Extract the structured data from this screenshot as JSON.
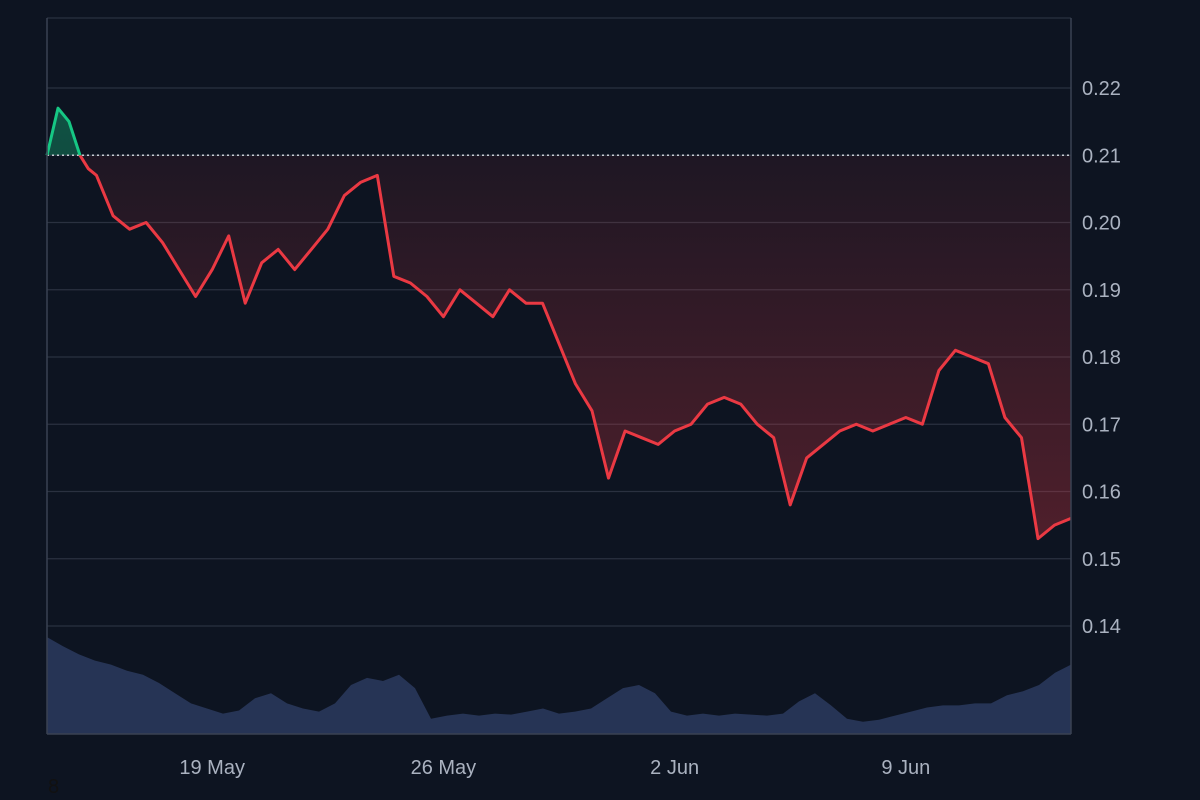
{
  "chart_data": {
    "type": "area",
    "title": "",
    "xlabel": "",
    "ylabel": "",
    "ylim": [
      0.13,
      0.23
    ],
    "yticks": [
      "0.22",
      "0.21",
      "0.20",
      "0.19",
      "0.18",
      "0.17",
      "0.16",
      "0.15",
      "0.14"
    ],
    "xticks": [
      "19 May",
      "26 May",
      "2 Jun",
      "9 Jun"
    ],
    "x_range": [
      "2025-05-14",
      "2025-06-14"
    ],
    "baseline": 0.21,
    "grid": true,
    "colors": {
      "up": "#16c784",
      "down": "#ea3943",
      "volume": "#2b3a5e",
      "grid": "#2a3140",
      "background": "#0d1421"
    },
    "series": [
      {
        "x": [
          "2025-05-14",
          "2025-05-14T08",
          "2025-05-14T16",
          "2025-05-15",
          "2025-05-15T06",
          "2025-05-15T12",
          "2025-05-16",
          "2025-05-16T12",
          "2025-05-17",
          "2025-05-17T12",
          "2025-05-18",
          "2025-05-18T12",
          "2025-05-19",
          "2025-05-19T12",
          "2025-05-20",
          "2025-05-20T12",
          "2025-05-21",
          "2025-05-21T12",
          "2025-05-22",
          "2025-05-22T12",
          "2025-05-23",
          "2025-05-23T12",
          "2025-05-24",
          "2025-05-24T12",
          "2025-05-25",
          "2025-05-25T12",
          "2025-05-26",
          "2025-05-26T12",
          "2025-05-27",
          "2025-05-27T12",
          "2025-05-28",
          "2025-05-28T12",
          "2025-05-29",
          "2025-05-29T12",
          "2025-05-30",
          "2025-05-30T12",
          "2025-05-31",
          "2025-05-31T12",
          "2025-06-01",
          "2025-06-01T12",
          "2025-06-02",
          "2025-06-02T12",
          "2025-06-03",
          "2025-06-03T12",
          "2025-06-04",
          "2025-06-04T12",
          "2025-06-05",
          "2025-06-05T12",
          "2025-06-06",
          "2025-06-06T12",
          "2025-06-07",
          "2025-06-07T12",
          "2025-06-08",
          "2025-06-08T12",
          "2025-06-09",
          "2025-06-09T12",
          "2025-06-10",
          "2025-06-10T12",
          "2025-06-11",
          "2025-06-11T12",
          "2025-06-12",
          "2025-06-12T12",
          "2025-06-13",
          "2025-06-13T12",
          "2025-06-14"
        ],
        "values": [
          0.21,
          0.217,
          0.215,
          0.21,
          0.208,
          0.207,
          0.201,
          0.199,
          0.2,
          0.197,
          0.193,
          0.189,
          0.193,
          0.198,
          0.188,
          0.194,
          0.196,
          0.193,
          0.196,
          0.199,
          0.204,
          0.206,
          0.207,
          0.192,
          0.191,
          0.189,
          0.186,
          0.19,
          0.188,
          0.186,
          0.19,
          0.188,
          0.188,
          0.182,
          0.176,
          0.172,
          0.162,
          0.169,
          0.168,
          0.167,
          0.169,
          0.17,
          0.173,
          0.174,
          0.173,
          0.17,
          0.168,
          0.158,
          0.165,
          0.167,
          0.169,
          0.17,
          0.169,
          0.17,
          0.171,
          0.17,
          0.178,
          0.181,
          0.18,
          0.179,
          0.171,
          0.168,
          0.153,
          0.155,
          0.156
        ]
      }
    ],
    "volume": [
      0.95,
      0.86,
      0.78,
      0.72,
      0.68,
      0.62,
      0.58,
      0.5,
      0.4,
      0.3,
      0.25,
      0.2,
      0.23,
      0.35,
      0.4,
      0.3,
      0.25,
      0.22,
      0.3,
      0.48,
      0.55,
      0.52,
      0.58,
      0.45,
      0.15,
      0.18,
      0.2,
      0.18,
      0.2,
      0.19,
      0.22,
      0.25,
      0.2,
      0.22,
      0.25,
      0.35,
      0.45,
      0.48,
      0.4,
      0.22,
      0.18,
      0.2,
      0.18,
      0.2,
      0.19,
      0.18,
      0.2,
      0.32,
      0.4,
      0.28,
      0.15,
      0.12,
      0.14,
      0.18,
      0.22,
      0.26,
      0.28,
      0.28,
      0.3,
      0.3,
      0.38,
      0.42,
      0.48,
      0.6,
      0.68
    ]
  },
  "corner_label": "8"
}
